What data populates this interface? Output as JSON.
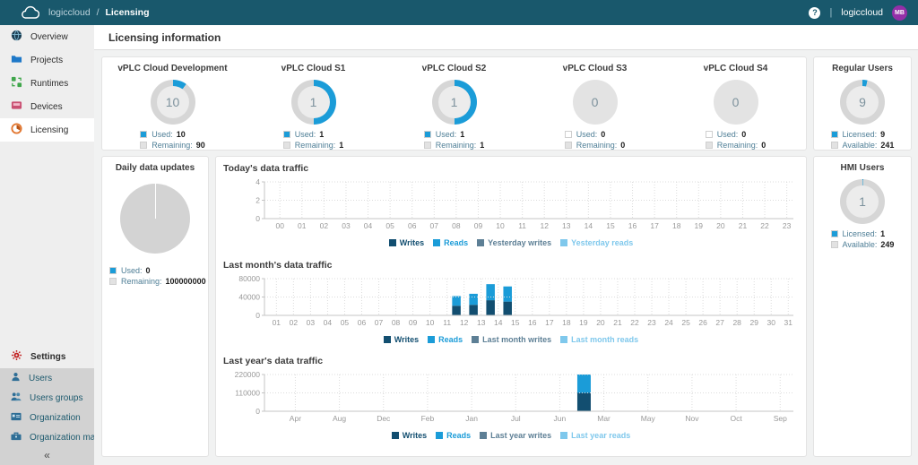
{
  "topbar": {
    "breadcrumb_app": "logiccloud",
    "breadcrumb_sep": "/",
    "breadcrumb_page": "Licensing",
    "help_glyph": "?",
    "account_name": "logiccloud",
    "avatar_initials": "MB"
  },
  "sidebar": {
    "items": [
      {
        "label": "Overview"
      },
      {
        "label": "Projects"
      },
      {
        "label": "Runtimes"
      },
      {
        "label": "Devices"
      },
      {
        "label": "Licensing"
      }
    ],
    "settings_label": "Settings",
    "sub_items": [
      {
        "label": "Users"
      },
      {
        "label": "Users groups"
      },
      {
        "label": "Organization"
      },
      {
        "label": "Organization management"
      }
    ],
    "collapse_glyph": "«"
  },
  "header": {
    "title": "Licensing information"
  },
  "colors": {
    "accent_blue": "#1b9cd8",
    "writes": "#124e70",
    "reads": "#1b9cd8",
    "prev_writes": "#5d7f95",
    "prev_reads": "#7fc8ec",
    "topbar_bg": "#19586c",
    "avatar_bg": "#942fa8"
  },
  "license_cards": [
    {
      "title": "vPLC Cloud Development",
      "value": "10",
      "percent": 10,
      "flat": false,
      "used_label": "Used:",
      "used": "10",
      "used_swatch": "#1b9cd8",
      "remaining_label": "Remaining:",
      "remaining": "90",
      "remaining_swatch": "#e2e2e2"
    },
    {
      "title": "vPLC Cloud S1",
      "value": "1",
      "percent": 50,
      "flat": false,
      "used_label": "Used:",
      "used": "1",
      "used_swatch": "#1b9cd8",
      "remaining_label": "Remaining:",
      "remaining": "1",
      "remaining_swatch": "#e2e2e2"
    },
    {
      "title": "vPLC Cloud S2",
      "value": "1",
      "percent": 50,
      "flat": false,
      "used_label": "Used:",
      "used": "1",
      "used_swatch": "#1b9cd8",
      "remaining_label": "Remaining:",
      "remaining": "1",
      "remaining_swatch": "#e2e2e2"
    },
    {
      "title": "vPLC Cloud S3",
      "value": "0",
      "percent": 0,
      "flat": true,
      "used_label": "Used:",
      "used": "0",
      "used_swatch": "#ffffff",
      "remaining_label": "Remaining:",
      "remaining": "0",
      "remaining_swatch": "#e2e2e2"
    },
    {
      "title": "vPLC Cloud S4",
      "value": "0",
      "percent": 0,
      "flat": true,
      "used_label": "Used:",
      "used": "0",
      "used_swatch": "#ffffff",
      "remaining_label": "Remaining:",
      "remaining": "0",
      "remaining_swatch": "#e2e2e2"
    }
  ],
  "user_cards": [
    {
      "title": "Regular Users",
      "value": "9",
      "percent": 3.6,
      "flat": false,
      "licensed_label": "Licensed:",
      "licensed": "9",
      "licensed_swatch": "#1b9cd8",
      "available_label": "Available:",
      "available": "241",
      "available_swatch": "#e2e2e2"
    },
    {
      "title": "HMI Users",
      "value": "1",
      "percent": 0.5,
      "flat": false,
      "licensed_label": "Licensed:",
      "licensed": "1",
      "licensed_swatch": "#1b9cd8",
      "available_label": "Available:",
      "available": "249",
      "available_swatch": "#e2e2e2"
    }
  ],
  "daily_card": {
    "title": "Daily data updates",
    "used_label": "Used:",
    "used": "0",
    "used_swatch": "#1b9cd8",
    "remaining_label": "Remaining:",
    "remaining": "100000000",
    "remaining_swatch": "#e2e2e2"
  },
  "chart_data": [
    {
      "type": "bar",
      "title": "Today's data traffic",
      "categories": [
        "00",
        "01",
        "02",
        "03",
        "04",
        "05",
        "06",
        "07",
        "08",
        "09",
        "10",
        "11",
        "12",
        "13",
        "14",
        "15",
        "16",
        "17",
        "18",
        "19",
        "20",
        "21",
        "22",
        "23"
      ],
      "xlabel": "",
      "ylabel": "",
      "ylim": [
        0,
        4
      ],
      "yticks": [
        0,
        2,
        4
      ],
      "grid": true,
      "legend_position": "bottom",
      "stacked": true,
      "series": [
        {
          "name": "Writes",
          "color": "#124e70",
          "values": {}
        },
        {
          "name": "Reads",
          "color": "#1b9cd8",
          "values": {}
        },
        {
          "name": "Yesterday writes",
          "color": "#5d7f95",
          "values": {}
        },
        {
          "name": "Yesterday reads",
          "color": "#7fc8ec",
          "values": {}
        }
      ]
    },
    {
      "type": "bar",
      "title": "Last month's data traffic",
      "categories": [
        "01",
        "02",
        "03",
        "04",
        "05",
        "06",
        "07",
        "08",
        "09",
        "10",
        "11",
        "12",
        "13",
        "14",
        "15",
        "16",
        "17",
        "18",
        "19",
        "20",
        "21",
        "22",
        "23",
        "24",
        "25",
        "26",
        "27",
        "28",
        "29",
        "30",
        "31"
      ],
      "xlabel": "",
      "ylabel": "",
      "ylim": [
        0,
        80000
      ],
      "yticks": [
        0,
        40000,
        80000
      ],
      "grid": true,
      "legend_position": "bottom",
      "stacked": true,
      "series": [
        {
          "name": "Writes",
          "color": "#124e70",
          "values": {
            "12": 21000,
            "13": 23000,
            "14": 33000,
            "15": 30000
          }
        },
        {
          "name": "Reads",
          "color": "#1b9cd8",
          "values": {
            "12": 21000,
            "13": 24000,
            "14": 35000,
            "15": 33000
          }
        },
        {
          "name": "Last month writes",
          "color": "#5d7f95",
          "values": {}
        },
        {
          "name": "Last month reads",
          "color": "#7fc8ec",
          "values": {}
        }
      ]
    },
    {
      "type": "bar",
      "title": "Last year's data traffic",
      "categories": [
        "Apr",
        "Aug",
        "Dec",
        "Feb",
        "Jan",
        "Jul",
        "Jun",
        "Mar",
        "May",
        "Nov",
        "Oct",
        "Sep"
      ],
      "xlabel": "",
      "ylabel": "",
      "ylim": [
        0,
        220000
      ],
      "yticks": [
        0,
        110000,
        220000
      ],
      "grid": true,
      "legend_position": "bottom",
      "stacked": true,
      "series": [
        {
          "name": "Writes",
          "color": "#124e70",
          "values": {
            "Mar": 110000
          }
        },
        {
          "name": "Reads",
          "color": "#1b9cd8",
          "values": {
            "Mar": 110000
          }
        },
        {
          "name": "Last year writes",
          "color": "#5d7f95",
          "values": {}
        },
        {
          "name": "Last year reads",
          "color": "#7fc8ec",
          "values": {}
        }
      ]
    }
  ]
}
